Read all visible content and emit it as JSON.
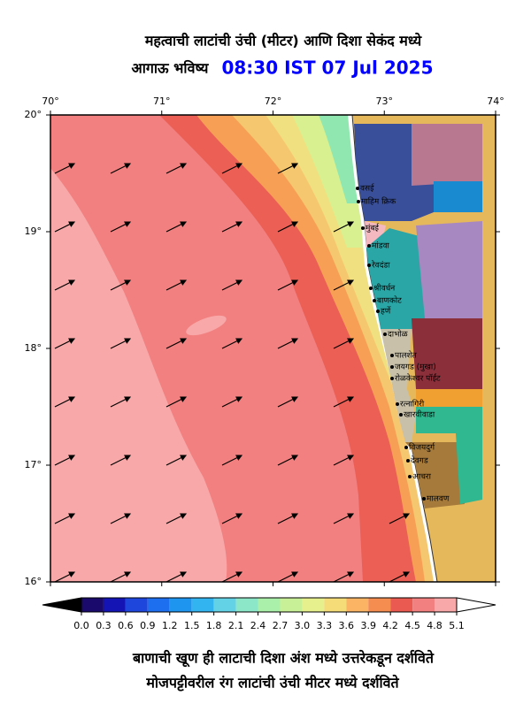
{
  "header": {
    "title": "महत्वाची लाटांची उंची (मीटर) आणि दिशा सेकंद मध्ये",
    "subtitle": "आगाऊ भविष्य",
    "timestamp": "08:30 IST 07 Jul 2025"
  },
  "map": {
    "lon_ticks": [
      {
        "value": 70,
        "label": "70°"
      },
      {
        "value": 71,
        "label": "71°"
      },
      {
        "value": 72,
        "label": "72°"
      },
      {
        "value": 73,
        "label": "73°"
      },
      {
        "value": 74,
        "label": "74°"
      }
    ],
    "lat_ticks": [
      {
        "value": 20,
        "label": "20°"
      },
      {
        "value": 19,
        "label": "19°"
      },
      {
        "value": 18,
        "label": "18°"
      },
      {
        "value": 17,
        "label": "17°"
      },
      {
        "value": 16,
        "label": "16°"
      }
    ],
    "lon_range": [
      70,
      74
    ],
    "lat_range": [
      20,
      16
    ],
    "places": [
      "वसई",
      "माहिम क्रिक",
      "मुंबई",
      "मांडवा",
      "रेवदंडा",
      "श्रीवर्धन",
      "बाणकोट",
      "हर्णे",
      "दाभोळ",
      "पालशेत",
      "जयगड (मुखा)",
      "रोळकेश्वर पॉईंट",
      "रत्नागिरी",
      "खारवीवाडा",
      "विजयदुर्ग",
      "देवगड",
      "आचरा",
      "मालवण"
    ]
  },
  "colorbar": {
    "range": [
      0,
      5.1
    ],
    "ticks": [
      {
        "value": 0,
        "label": "0.0"
      },
      0.3,
      0.6,
      0.9,
      1.2,
      1.5,
      1.8,
      2.1,
      2.4,
      2.7,
      {
        "value": 3,
        "label": "3.0"
      },
      3.3,
      3.6,
      3.9,
      4.2,
      4.5,
      4.8,
      5.1
    ],
    "colors": [
      "#1a0a6b",
      "#1414b4",
      "#1e46dc",
      "#1e6ef0",
      "#1e96f0",
      "#32b4f0",
      "#64d2e6",
      "#8ce6c8",
      "#aaf0aa",
      "#c8f096",
      "#e6f08c",
      "#f5dc78",
      "#fab464",
      "#f58c50",
      "#eb5a50",
      "#f28080",
      "#f8a8a8"
    ],
    "under_color": "#000000",
    "over_color": "#ffffff"
  },
  "footer": {
    "line1": "बाणाची खूण ही लाटाची दिशा अंश मध्ये उत्तरेकडून दर्शविते",
    "line2": "मोजपट्टीवरील रंग लाटांची उंची मीटर मध्ये दर्शविते"
  }
}
